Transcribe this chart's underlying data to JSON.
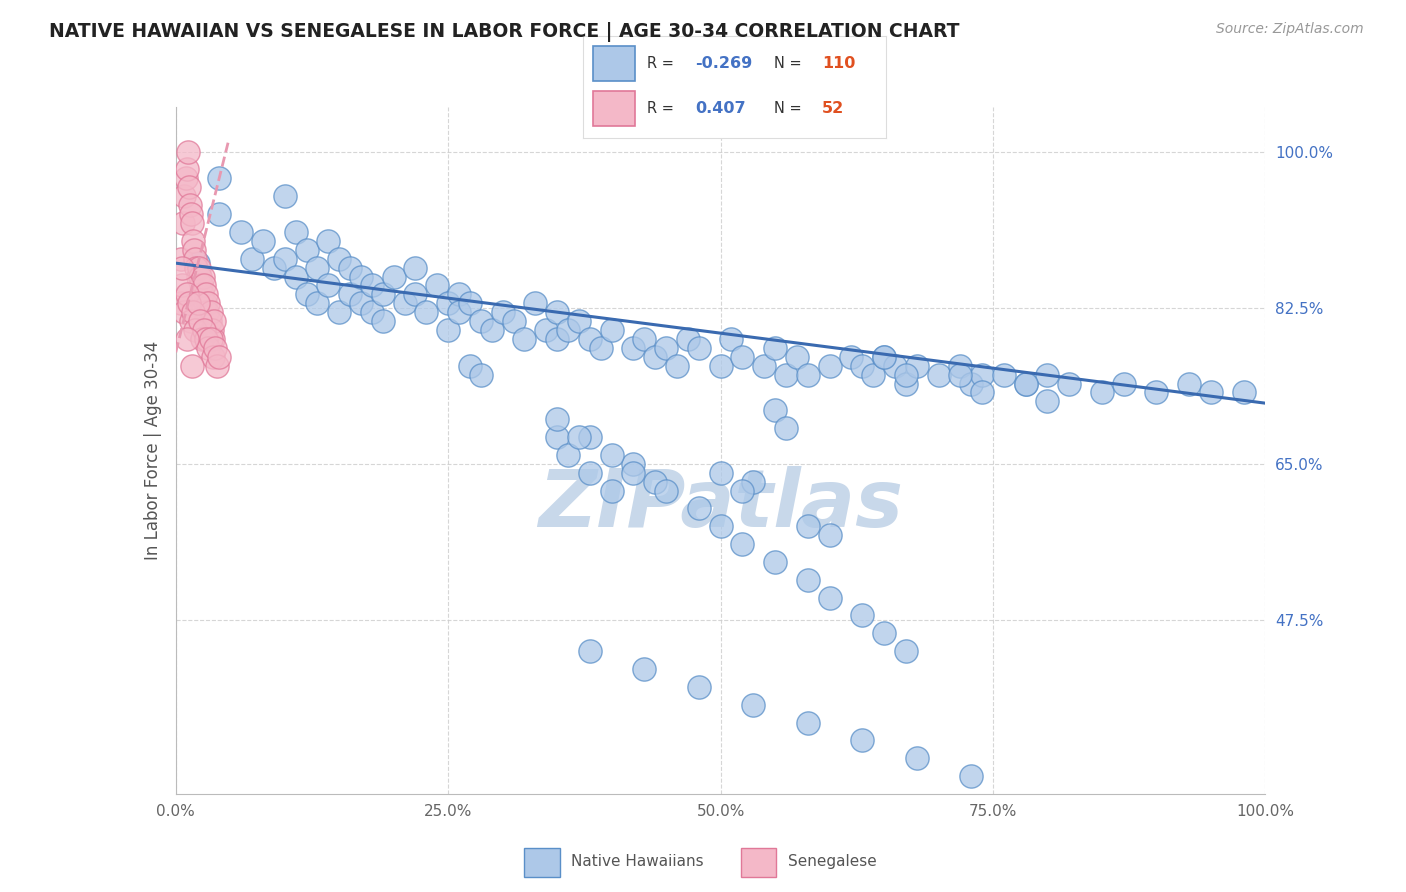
{
  "title": "NATIVE HAWAIIAN VS SENEGALESE IN LABOR FORCE | AGE 30-34 CORRELATION CHART",
  "source": "Source: ZipAtlas.com",
  "ylabel": "In Labor Force | Age 30-34",
  "xlim": [
    0.0,
    1.0
  ],
  "ylim": [
    0.28,
    1.05
  ],
  "yticks": [
    0.475,
    0.65,
    0.825,
    1.0
  ],
  "ytick_labels": [
    "47.5%",
    "65.0%",
    "82.5%",
    "100.0%"
  ],
  "xticks": [
    0.0,
    0.25,
    0.5,
    0.75,
    1.0
  ],
  "xtick_labels": [
    "0.0%",
    "25.0%",
    "50.0%",
    "75.0%",
    "100.0%"
  ],
  "blue_color": "#adc8e8",
  "blue_edge_color": "#5a8fc8",
  "pink_color": "#f4b8c8",
  "pink_edge_color": "#e07898",
  "blue_line_color": "#3a6ab0",
  "pink_line_color": "#e898b0",
  "watermark": "ZIPatlas",
  "watermark_color": "#c8d8ea",
  "background_color": "#ffffff",
  "grid_color": "#cccccc",
  "blue_line_x0": 0.0,
  "blue_line_y0": 0.875,
  "blue_line_x1": 1.0,
  "blue_line_y1": 0.718,
  "pink_line_x0": 0.0,
  "pink_line_y0": 0.775,
  "pink_line_x1": 0.048,
  "pink_line_y1": 1.01,
  "blue_scatter_x": [
    0.02,
    0.04,
    0.04,
    0.06,
    0.07,
    0.08,
    0.09,
    0.1,
    0.1,
    0.11,
    0.11,
    0.12,
    0.12,
    0.13,
    0.13,
    0.14,
    0.14,
    0.15,
    0.15,
    0.16,
    0.16,
    0.17,
    0.17,
    0.18,
    0.18,
    0.19,
    0.19,
    0.2,
    0.21,
    0.22,
    0.22,
    0.23,
    0.24,
    0.25,
    0.25,
    0.26,
    0.26,
    0.27,
    0.28,
    0.29,
    0.3,
    0.31,
    0.32,
    0.33,
    0.34,
    0.35,
    0.35,
    0.36,
    0.37,
    0.38,
    0.39,
    0.4,
    0.42,
    0.43,
    0.44,
    0.45,
    0.46,
    0.47,
    0.48,
    0.5,
    0.51,
    0.52,
    0.53,
    0.54,
    0.55,
    0.56,
    0.57,
    0.58,
    0.6,
    0.62,
    0.63,
    0.64,
    0.65,
    0.66,
    0.67,
    0.68,
    0.7,
    0.72,
    0.73,
    0.74,
    0.76,
    0.78,
    0.8,
    0.82,
    0.85,
    0.87,
    0.9,
    0.93,
    0.95,
    0.98,
    0.5,
    0.52,
    0.58,
    0.6,
    0.38,
    0.4,
    0.27,
    0.28,
    0.35,
    0.36,
    0.42,
    0.44,
    0.55,
    0.56,
    0.65,
    0.67,
    0.72,
    0.74,
    0.78,
    0.8
  ],
  "blue_scatter_y": [
    0.875,
    0.97,
    0.93,
    0.91,
    0.88,
    0.9,
    0.87,
    0.95,
    0.88,
    0.91,
    0.86,
    0.89,
    0.84,
    0.87,
    0.83,
    0.9,
    0.85,
    0.88,
    0.82,
    0.87,
    0.84,
    0.86,
    0.83,
    0.85,
    0.82,
    0.84,
    0.81,
    0.86,
    0.83,
    0.87,
    0.84,
    0.82,
    0.85,
    0.83,
    0.8,
    0.84,
    0.82,
    0.83,
    0.81,
    0.8,
    0.82,
    0.81,
    0.79,
    0.83,
    0.8,
    0.82,
    0.79,
    0.8,
    0.81,
    0.79,
    0.78,
    0.8,
    0.78,
    0.79,
    0.77,
    0.78,
    0.76,
    0.79,
    0.78,
    0.76,
    0.79,
    0.77,
    0.63,
    0.76,
    0.78,
    0.75,
    0.77,
    0.75,
    0.76,
    0.77,
    0.76,
    0.75,
    0.77,
    0.76,
    0.74,
    0.76,
    0.75,
    0.76,
    0.74,
    0.75,
    0.75,
    0.74,
    0.75,
    0.74,
    0.73,
    0.74,
    0.73,
    0.74,
    0.73,
    0.73,
    0.64,
    0.62,
    0.58,
    0.57,
    0.64,
    0.62,
    0.76,
    0.75,
    0.68,
    0.66,
    0.65,
    0.63,
    0.71,
    0.69,
    0.77,
    0.75,
    0.75,
    0.73,
    0.74,
    0.72
  ],
  "pink_scatter_x": [
    0.005,
    0.007,
    0.008,
    0.009,
    0.01,
    0.011,
    0.012,
    0.013,
    0.014,
    0.015,
    0.016,
    0.017,
    0.018,
    0.019,
    0.02,
    0.021,
    0.022,
    0.023,
    0.024,
    0.025,
    0.026,
    0.027,
    0.028,
    0.029,
    0.03,
    0.031,
    0.032,
    0.033,
    0.034,
    0.035,
    0.005,
    0.006,
    0.008,
    0.01,
    0.012,
    0.014,
    0.016,
    0.018,
    0.02,
    0.022,
    0.024,
    0.026,
    0.028,
    0.03,
    0.032,
    0.034,
    0.036,
    0.038,
    0.04,
    0.006,
    0.01,
    0.015
  ],
  "pink_scatter_y": [
    0.88,
    0.92,
    0.95,
    0.97,
    0.98,
    1.0,
    0.96,
    0.94,
    0.93,
    0.92,
    0.9,
    0.89,
    0.88,
    0.87,
    0.86,
    0.87,
    0.86,
    0.85,
    0.84,
    0.86,
    0.85,
    0.83,
    0.84,
    0.82,
    0.83,
    0.81,
    0.82,
    0.8,
    0.79,
    0.81,
    0.83,
    0.85,
    0.82,
    0.84,
    0.83,
    0.81,
    0.82,
    0.8,
    0.83,
    0.81,
    0.79,
    0.8,
    0.79,
    0.78,
    0.79,
    0.77,
    0.78,
    0.76,
    0.77,
    0.87,
    0.79,
    0.76
  ],
  "extra_blue_low_x": [
    0.38,
    0.4,
    0.42,
    0.45,
    0.48,
    0.5,
    0.52,
    0.55,
    0.58,
    0.6,
    0.63,
    0.65,
    0.67,
    0.35,
    0.37
  ],
  "extra_blue_low_y": [
    0.68,
    0.66,
    0.64,
    0.62,
    0.6,
    0.58,
    0.56,
    0.54,
    0.52,
    0.5,
    0.48,
    0.46,
    0.44,
    0.7,
    0.68
  ],
  "extra_blue_vlow_x": [
    0.38,
    0.43,
    0.48,
    0.53,
    0.58,
    0.63,
    0.68,
    0.73
  ],
  "extra_blue_vlow_y": [
    0.44,
    0.42,
    0.4,
    0.38,
    0.36,
    0.34,
    0.32,
    0.3
  ]
}
